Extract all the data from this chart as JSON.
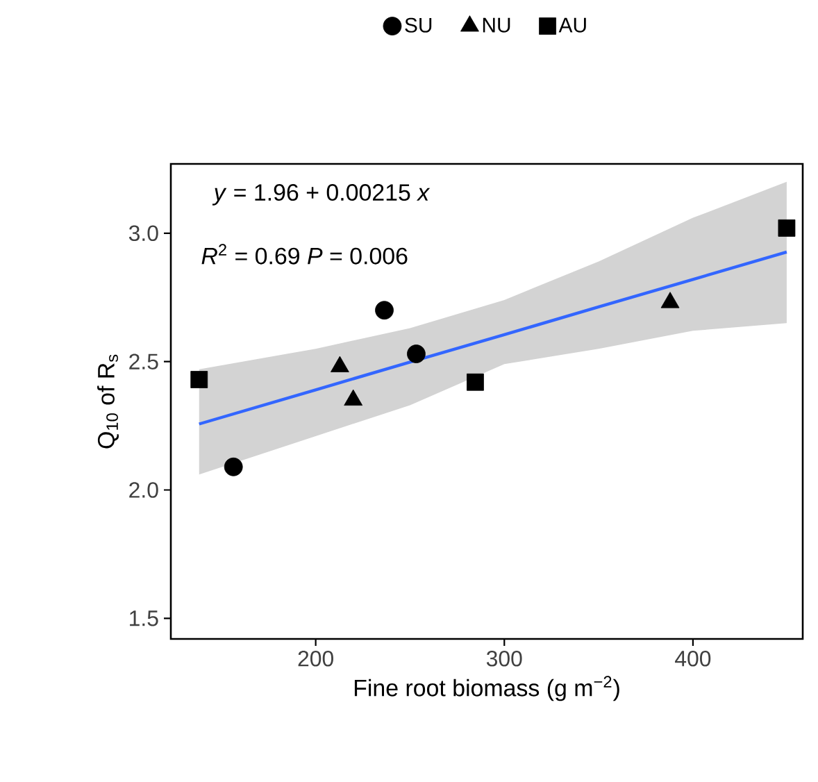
{
  "chart_data": {
    "type": "scatter",
    "xlabel": "Fine root biomass (g  m$^{−2}$)",
    "ylabel": "Q$_{10}$ of R$_{s}$",
    "xlim": [
      123.2,
      458.2
    ],
    "ylim": [
      1.42,
      3.27
    ],
    "xticks": [
      200,
      300,
      400
    ],
    "yticks": [
      1.5,
      {
        "value": 2,
        "label": "2.0"
      },
      2.5,
      {
        "value": 3,
        "label": "3.0"
      }
    ],
    "grid": false,
    "legend": "top",
    "annotations": [
      "*y* = 1.96 + 0.00215 *x*",
      "*R*$^{2}$ = 0.69   *P* = 0.006"
    ],
    "series": [
      {
        "name": "SU",
        "color": "#000000",
        "marker": "circle",
        "x": [
          156.4,
          236.4,
          253.3
        ],
        "values": [
          2.09,
          2.7,
          2.53
        ]
      },
      {
        "name": "NU",
        "color": "#000000",
        "marker": "triangle",
        "x": [
          212.8,
          219.9,
          387.9
        ],
        "values": [
          2.48,
          2.35,
          2.73
        ]
      },
      {
        "name": "AU",
        "color": "#000000",
        "marker": "square",
        "x": [
          138.2,
          284.6,
          449.7
        ],
        "values": [
          2.43,
          2.42,
          3.02
        ]
      },
      {
        "type": "line",
        "color": "#3366ff",
        "x": [
          138.2,
          200,
          250,
          300,
          350,
          400,
          449.7
        ],
        "values": [
          2.257,
          2.39,
          2.498,
          2.605,
          2.713,
          2.82,
          2.927
        ],
        "lower": [
          2.06,
          2.21,
          2.33,
          2.49,
          2.55,
          2.62,
          2.65
        ],
        "upper": [
          2.47,
          2.55,
          2.63,
          2.74,
          2.89,
          3.06,
          3.2
        ]
      }
    ]
  }
}
